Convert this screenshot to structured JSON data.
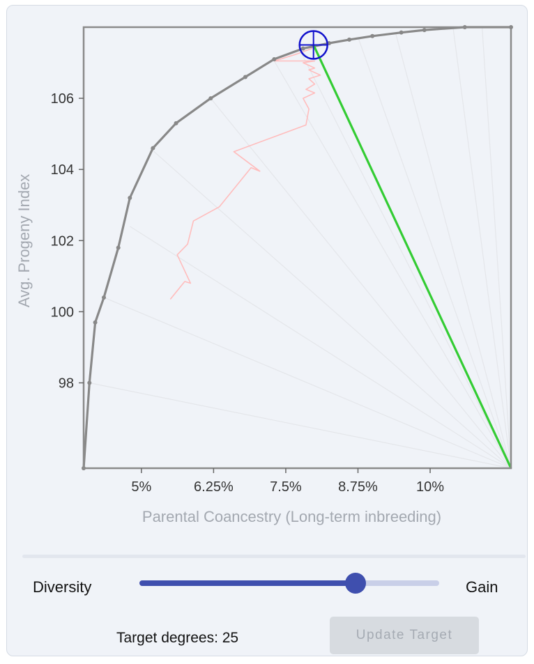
{
  "chart_data": {
    "type": "line",
    "xlabel": "Parental Coancestry (Long-term inbreeding)",
    "ylabel": "Avg. Progeny Index",
    "x_ticks": [
      5,
      6.25,
      7.5,
      8.75,
      10
    ],
    "x_tick_labels": [
      "5%",
      "6.25%",
      "7.5%",
      "8.75%",
      "10%"
    ],
    "y_ticks": [
      98,
      100,
      102,
      104,
      106
    ],
    "y_tick_labels": [
      "98",
      "100",
      "102",
      "104",
      "106"
    ],
    "xlim": [
      4.0,
      11.4
    ],
    "ylim": [
      95.6,
      108.0
    ],
    "grid": false,
    "series": [
      {
        "role": "frontier",
        "color": "#888888",
        "x": [
          4.0,
          4.1,
          4.2,
          4.35,
          4.6,
          4.8,
          5.2,
          5.6,
          6.2,
          6.8,
          7.3,
          7.8,
          8.25,
          8.6,
          9.0,
          9.5,
          9.9,
          10.6,
          11.4
        ],
        "y": [
          95.6,
          98.0,
          99.7,
          100.4,
          101.8,
          103.2,
          104.6,
          105.3,
          106.0,
          106.6,
          107.1,
          107.4,
          107.55,
          107.65,
          107.75,
          107.85,
          107.92,
          108.0,
          108.0
        ]
      },
      {
        "role": "optimization-path",
        "color": "#ffbcbc",
        "x": [
          5.5,
          5.75,
          5.85,
          5.62,
          5.8,
          5.9,
          6.35,
          6.9,
          7.05,
          6.6,
          7.35,
          7.85,
          7.9,
          7.8,
          8.0,
          7.85,
          8.0,
          7.9,
          8.1,
          7.9,
          8.0,
          7.8,
          8.0,
          7.3,
          7.7,
          7.95,
          7.98
        ],
        "y": [
          100.35,
          100.85,
          100.8,
          101.6,
          101.9,
          102.55,
          102.95,
          104.05,
          103.95,
          104.5,
          104.95,
          105.25,
          105.7,
          106.0,
          106.15,
          106.25,
          106.4,
          106.55,
          106.65,
          106.8,
          106.85,
          107.0,
          107.05,
          107.05,
          107.25,
          107.4,
          107.55
        ]
      },
      {
        "role": "target-direction",
        "color": "#33cc33",
        "x": [
          7.98,
          11.4
        ],
        "y": [
          107.5,
          95.6
        ]
      }
    ],
    "rays": {
      "origin": [
        11.4,
        95.6
      ],
      "targets": [
        [
          4.1,
          98.0
        ],
        [
          4.35,
          100.4
        ],
        [
          4.8,
          102.4
        ],
        [
          5.15,
          104.6
        ],
        [
          6.2,
          106.0
        ],
        [
          7.3,
          107.05
        ],
        [
          7.7,
          107.5
        ],
        [
          8.75,
          107.72
        ],
        [
          9.4,
          107.85
        ],
        [
          10.4,
          107.95
        ],
        [
          10.9,
          108.0
        ]
      ]
    },
    "target_marker": {
      "x": 7.98,
      "y": 107.5,
      "color": "#1111cc"
    }
  },
  "controls": {
    "left_label": "Diversity",
    "right_label": "Gain",
    "slider_value": 0.72,
    "target_text": "Target degrees: 25",
    "update_button_label": "Update Target"
  },
  "colors": {
    "slider_accent": "#3f4fae",
    "slider_track": "#c9cfe8",
    "frontier": "#888888",
    "target_line": "#33cc33",
    "target_marker": "#1111cc",
    "path": "#ffbcbc"
  }
}
